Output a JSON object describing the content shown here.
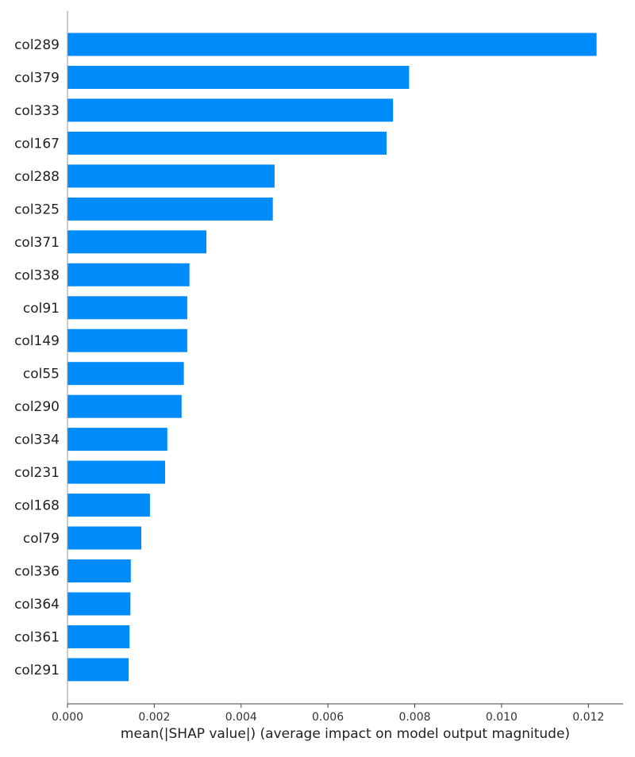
{
  "chart_data": {
    "type": "bar",
    "orientation": "horizontal",
    "xlabel": "mean(|SHAP value|) (average impact on model output magnitude)",
    "xlim": [
      0.0,
      0.0128
    ],
    "xticks": [
      "0.000",
      "0.002",
      "0.004",
      "0.006",
      "0.008",
      "0.010",
      "0.012"
    ],
    "grid": false,
    "bar_color": "#008bfb",
    "categories": [
      "col289",
      "col379",
      "col333",
      "col167",
      "col288",
      "col325",
      "col371",
      "col338",
      "col91",
      "col149",
      "col55",
      "col290",
      "col334",
      "col231",
      "col168",
      "col79",
      "col336",
      "col364",
      "col361",
      "col291"
    ],
    "values": [
      0.01219,
      0.00787,
      0.0075,
      0.00735,
      0.00477,
      0.00473,
      0.0032,
      0.00281,
      0.00276,
      0.00276,
      0.00268,
      0.00263,
      0.0023,
      0.00225,
      0.0019,
      0.0017,
      0.00146,
      0.00145,
      0.00143,
      0.00141
    ]
  }
}
